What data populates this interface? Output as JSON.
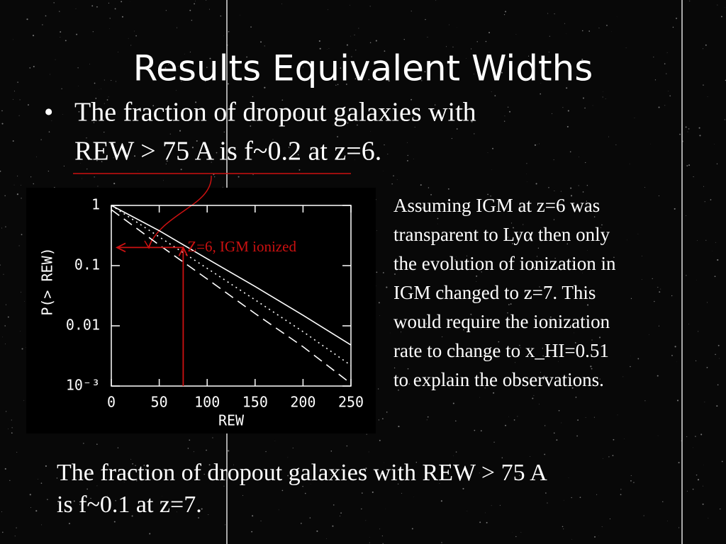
{
  "title": "Results Equivalent Widths",
  "bullet": [
    "The fraction of dropout galaxies with",
    "REW > 75 A is f~0.2 at z=6."
  ],
  "note": [
    "Assuming IGM at z=6 was",
    "transparent to Lyα then only",
    "the evolution of ionization in",
    "IGM changed to z=7. This",
    "would require the ionization",
    "rate to change to x_HI=0.51",
    "to explain the observations."
  ],
  "caption": [
    "The fraction of dropout galaxies with REW > 75 A",
    "is f~0.1 at z=7."
  ],
  "chart_data": {
    "type": "line",
    "xlabel": "REW",
    "ylabel": "P(> REW)",
    "x": [
      0,
      50,
      100,
      150,
      200,
      250
    ],
    "series": [
      {
        "color": "#ffffff",
        "style": "solid",
        "values": [
          1,
          0.38,
          0.13,
          0.045,
          0.015,
          0.0048
        ]
      },
      {
        "color": "#ffffff",
        "style": "dotted",
        "values": [
          1,
          0.3,
          0.09,
          0.027,
          0.008,
          0.0022
        ]
      },
      {
        "color": "#ffffff",
        "style": "dashed",
        "values": [
          0.85,
          0.22,
          0.06,
          0.016,
          0.0045,
          0.0011
        ]
      }
    ],
    "xlim": [
      0,
      250
    ],
    "xticks": [
      0,
      50,
      100,
      150,
      200,
      250
    ],
    "ylim": [
      0.001,
      1
    ],
    "ylog": true,
    "yticks": [
      1,
      0.1,
      0.01,
      {
        "value": 0.001,
        "label": "10⁻³"
      }
    ],
    "annotation": {
      "text": "Z=6, IGM ionized",
      "x": 75,
      "y": 0.2,
      "color": "#cc1111"
    }
  }
}
